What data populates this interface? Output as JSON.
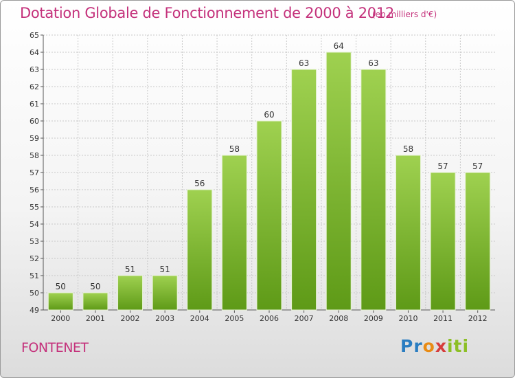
{
  "title": "Dotation Globale de Fonctionnement de 2000 à 2012",
  "unit_note": "(en milliers d'€)",
  "commune": "FONTENET",
  "logo": {
    "text": "Proxiti",
    "parts": [
      "Pr",
      "o",
      "x",
      "iti"
    ]
  },
  "colors": {
    "title": "#c4317b",
    "bar_light": "#9fd150",
    "bar_dark": "#5e9a17",
    "grid": "#c8c8c8"
  },
  "chart_data": {
    "type": "bar",
    "title": "Dotation Globale de Fonctionnement de 2000 à 2012",
    "xlabel": "",
    "ylabel": "en milliers d'€",
    "categories": [
      "2000",
      "2001",
      "2002",
      "2003",
      "2004",
      "2005",
      "2006",
      "2007",
      "2008",
      "2009",
      "2010",
      "2011",
      "2012"
    ],
    "values": [
      50,
      50,
      51,
      51,
      56,
      58,
      60,
      63,
      64,
      63,
      58,
      57,
      57
    ],
    "ylim": [
      49,
      65
    ],
    "yticks": [
      49,
      50,
      51,
      52,
      53,
      54,
      55,
      56,
      57,
      58,
      59,
      60,
      61,
      62,
      63,
      64,
      65
    ],
    "grid": true,
    "legend": "none"
  }
}
